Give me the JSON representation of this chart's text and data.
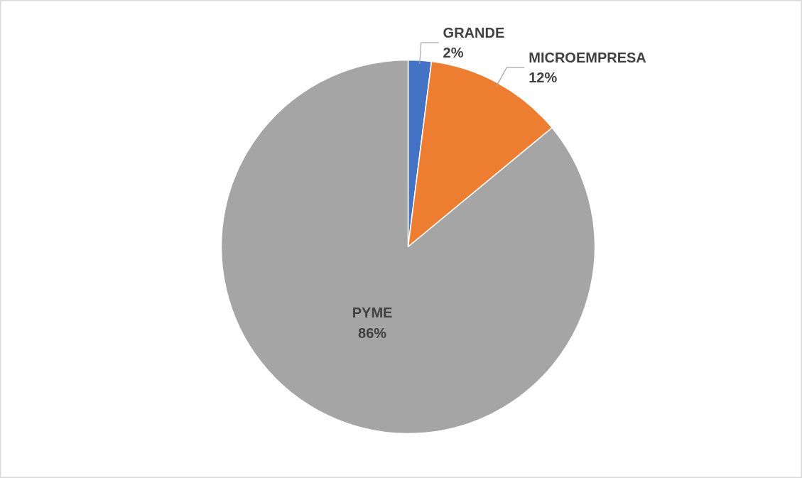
{
  "chart_data": {
    "type": "pie",
    "categories": [
      "GRANDE",
      "MICROEMPRESA",
      "PYME"
    ],
    "values": [
      2,
      12,
      86
    ],
    "colors": [
      "#4472c4",
      "#ed7d31",
      "#a5a5a5"
    ],
    "value_labels": [
      "2%",
      "12%",
      "86%"
    ]
  }
}
